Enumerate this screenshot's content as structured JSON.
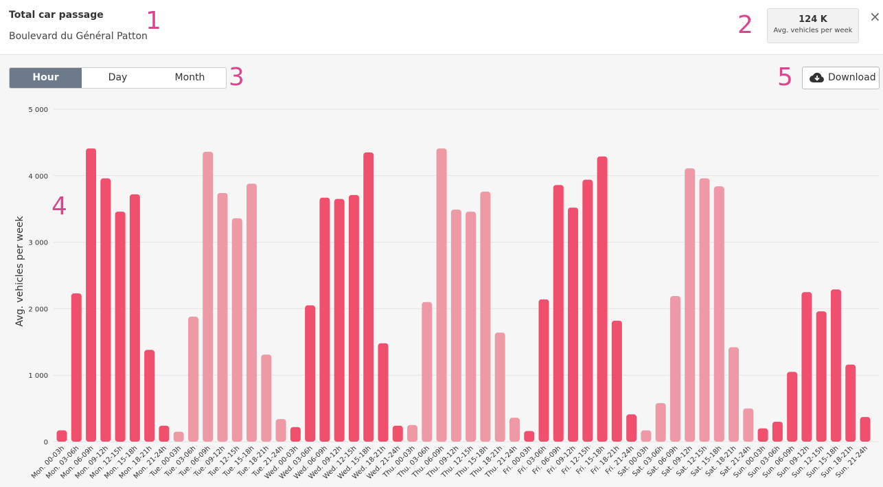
{
  "header": {
    "title": "Total car passage",
    "subtitle": "Boulevard du Général Patton"
  },
  "stats": {
    "value": "124 K",
    "label": "Avg. vehicles per week"
  },
  "close": "×",
  "toolbar": {
    "tabs": [
      "Hour",
      "Day",
      "Month"
    ],
    "active_tab": 0,
    "download": "Download"
  },
  "markers": [
    "1",
    "2",
    "3",
    "4",
    "5"
  ],
  "chart_data": {
    "type": "bar",
    "y_label": "Avg. vehicles per week",
    "categories": [
      "Mon. 00-03h",
      "Mon. 03-06h",
      "Mon. 06-09h",
      "Mon. 09-12h",
      "Mon. 12-15h",
      "Mon. 15-18h",
      "Mon. 18-21h",
      "Mon. 21-24h",
      "Tue. 00-03h",
      "Tue. 03-06h",
      "Tue. 06-09h",
      "Tue. 09-12h",
      "Tue. 12-15h",
      "Tue. 15-18h",
      "Tue. 18-21h",
      "Tue. 21-24h",
      "Wed. 00-03h",
      "Wed. 03-06h",
      "Wed. 06-09h",
      "Wed. 09-12h",
      "Wed. 12-15h",
      "Wed. 15-18h",
      "Wed. 18-21h",
      "Wed. 21-24h",
      "Thu. 00-03h",
      "Thu. 03-06h",
      "Thu. 06-09h",
      "Thu. 09-12h",
      "Thu. 12-15h",
      "Thu. 15-18h",
      "Thu. 18-21h",
      "Thu. 21-24h",
      "Fri. 00-03h",
      "Fri. 03-06h",
      "Fri. 06-09h",
      "Fri. 09-12h",
      "Fri. 12-15h",
      "Fri. 15-18h",
      "Fri. 18-21h",
      "Fri. 21-24h",
      "Sat. 00-03h",
      "Sat. 03-06h",
      "Sat. 06-09h",
      "Sat. 09-12h",
      "Sat. 12-15h",
      "Sat. 15-18h",
      "Sat. 18-21h",
      "Sat. 21-24h",
      "Sun. 00-03h",
      "Sun. 03-06h",
      "Sun. 06-09h",
      "Sun. 09-12h",
      "Sun. 12-15h",
      "Sun. 15-18h",
      "Sun. 18-21h",
      "Sun. 21-24h"
    ],
    "values": [
      170,
      2230,
      4410,
      3960,
      3460,
      3720,
      1380,
      240,
      150,
      1880,
      4360,
      3740,
      3360,
      3880,
      1310,
      340,
      220,
      2050,
      3670,
      3650,
      3710,
      4350,
      1480,
      240,
      250,
      2100,
      4410,
      3490,
      3460,
      3760,
      1640,
      360,
      160,
      2140,
      3860,
      3520,
      3940,
      4290,
      1820,
      410,
      170,
      580,
      2190,
      4110,
      3960,
      3840,
      1420,
      500,
      200,
      300,
      1050,
      2250,
      1960,
      2290,
      1160,
      370
    ],
    "day_colors": [
      "#f0506e",
      "#ee9aa6"
    ],
    "ylim": [
      0,
      5000
    ],
    "yticks": [
      0,
      {
        "value": 1000,
        "label": "1 000"
      },
      {
        "value": 2000,
        "label": "2 000"
      },
      {
        "value": 3000,
        "label": "3 000"
      },
      {
        "value": 4000,
        "label": "4 000"
      },
      {
        "value": 5000,
        "label": "5 000"
      }
    ],
    "grid": true
  }
}
